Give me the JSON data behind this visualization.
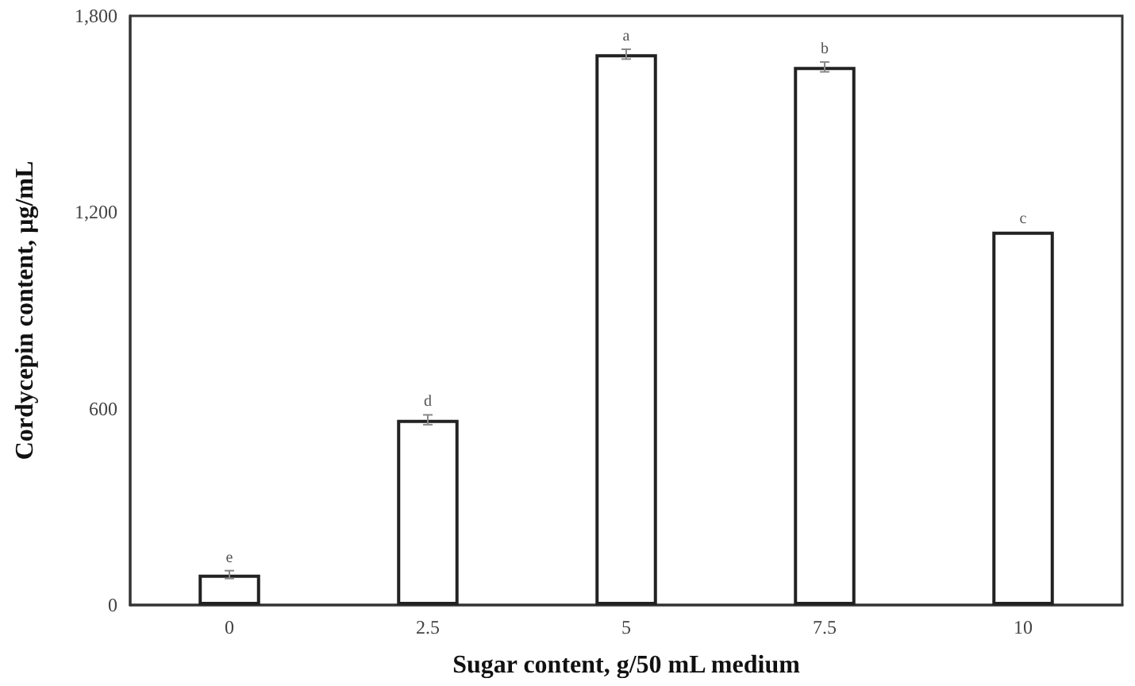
{
  "chart_data": {
    "type": "bar",
    "xlabel": "Sugar content, g/50 mL medium",
    "ylabel": "Cordycepin content, µg/mL",
    "categories": [
      "0",
      "2.5",
      "5",
      "7.5",
      "10"
    ],
    "values": [
      93,
      566,
      1683,
      1644,
      1141
    ],
    "errors": [
      12,
      15,
      15,
      15,
      null
    ],
    "color": "#ffffff",
    "ylim": [
      0,
      1800
    ],
    "yticks": [
      0,
      {
        "value": 600,
        "label": "600"
      },
      {
        "value": 1200,
        "label": "1,200"
      },
      {
        "value": 1800,
        "label": "1,800"
      }
    ],
    "grid": false,
    "annotations": [
      {
        "text": "e",
        "x": "0",
        "y": 105
      },
      {
        "text": "d",
        "x": "2.5",
        "y": 581
      },
      {
        "text": "a",
        "x": "5",
        "y": 1698
      },
      {
        "text": "b",
        "x": "7.5",
        "y": 1659
      },
      {
        "text": "c",
        "x": "10",
        "y": 1141
      }
    ]
  }
}
